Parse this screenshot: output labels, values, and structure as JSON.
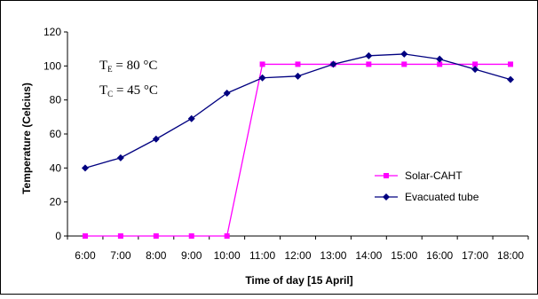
{
  "chart_data": {
    "type": "line",
    "x": [
      "6:00",
      "7:00",
      "8:00",
      "9:00",
      "10:00",
      "11:00",
      "12:00",
      "13:00",
      "14:00",
      "15:00",
      "16:00",
      "17:00",
      "18:00"
    ],
    "series": [
      {
        "name": "Solar-CAHT",
        "color": "#ff00ff",
        "marker": "square",
        "values": [
          0,
          0,
          0,
          0,
          0,
          101,
          101,
          101,
          101,
          101,
          101,
          101,
          101
        ]
      },
      {
        "name": "Evacuated tube",
        "color": "#000080",
        "marker": "diamond",
        "values": [
          40,
          46,
          57,
          69,
          84,
          93,
          94,
          101,
          106,
          107,
          104,
          98,
          92
        ]
      }
    ],
    "xlabel": "Time of day [15 April]",
    "ylabel": "Temperature (Celcius)",
    "ylim": [
      0,
      120
    ],
    "yticks": [
      "0",
      "20",
      "40",
      "60",
      "80",
      "100",
      "120"
    ],
    "grid": false,
    "legend_position": "right",
    "annotations": [
      {
        "main": "T",
        "sub": "E",
        "rest": " = 80 °C"
      },
      {
        "main": "T",
        "sub": "C",
        "rest": " = 45 °C"
      }
    ]
  }
}
